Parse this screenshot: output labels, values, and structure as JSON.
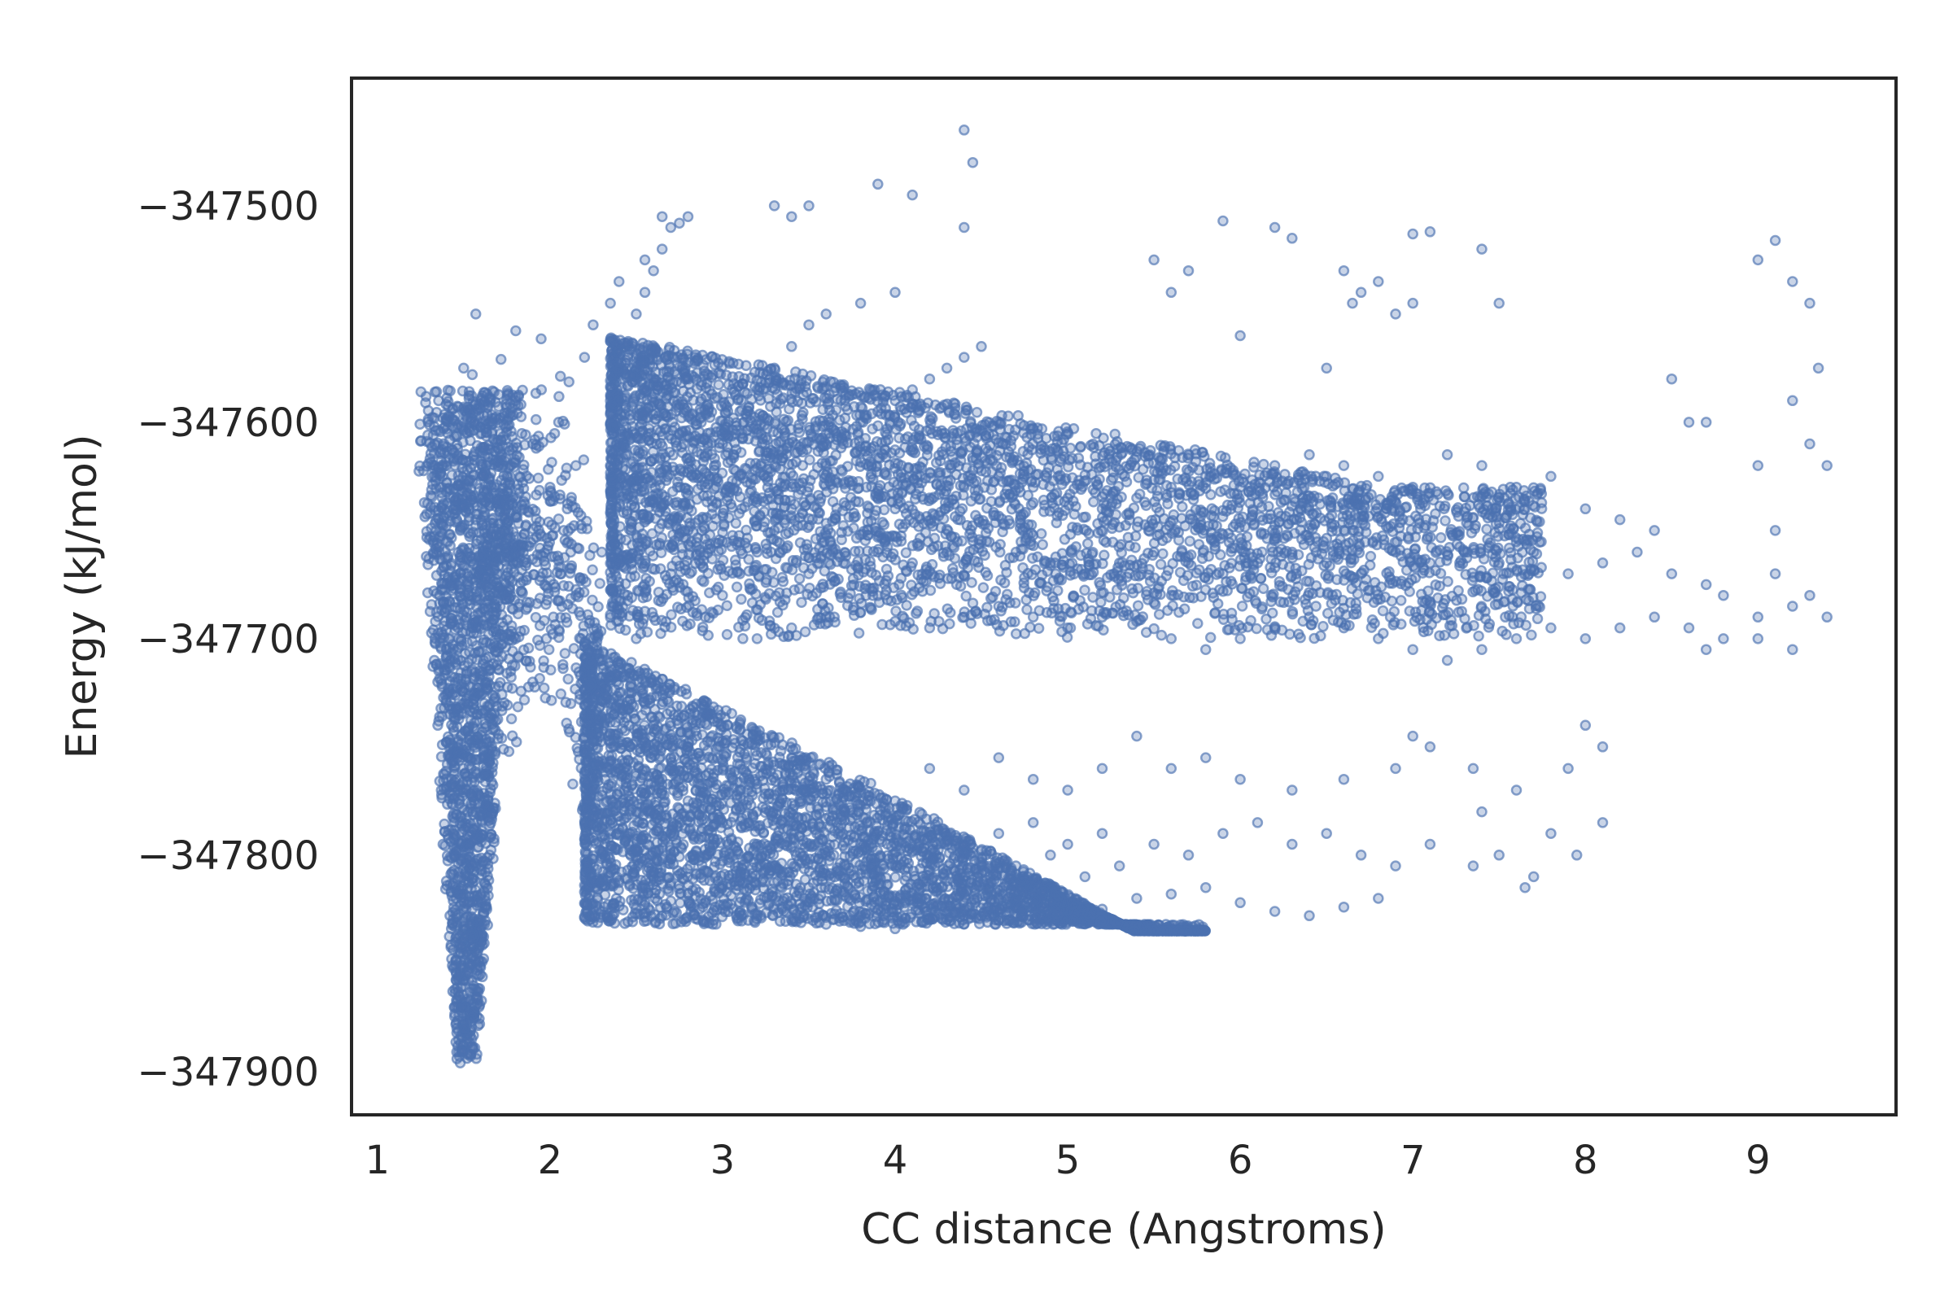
{
  "chart_data": {
    "type": "scatter",
    "title": "",
    "xlabel": "CC distance (Angstroms)",
    "ylabel": "Energy (kJ/mol)",
    "xlim": [
      0.85,
      9.8
    ],
    "ylim": [
      -347920,
      -347441
    ],
    "x_ticks": [
      1,
      2,
      3,
      4,
      5,
      6,
      7,
      8,
      9
    ],
    "x_tick_labels": [
      "1",
      "2",
      "3",
      "4",
      "5",
      "6",
      "7",
      "8",
      "9"
    ],
    "y_ticks": [
      -347500,
      -347600,
      -347700,
      -347800,
      -347900
    ],
    "y_tick_labels": [
      "−347500",
      "−347600",
      "−347700",
      "−347800",
      "−347900"
    ],
    "grid": false,
    "legend": "none",
    "marker_color": "#4c72b0",
    "marker_alpha": 0.5,
    "clusters": [
      {
        "x": [
          1.3,
          2.0
        ],
        "y": [
          -347900,
          -347580
        ],
        "note": "steep minimum well near 1.5 A"
      },
      {
        "x": [
          2.3,
          9.4
        ],
        "y": [
          -347710,
          -347505
        ],
        "note": "upper branch"
      },
      {
        "x": [
          2.2,
          8.1
        ],
        "y": [
          -347835,
          -347740
        ],
        "note": "lower branch"
      }
    ],
    "points": [
      [
        1.48,
        -347896
      ],
      [
        1.5,
        -347890
      ],
      [
        1.52,
        -347885
      ],
      [
        1.46,
        -347880
      ],
      [
        1.55,
        -347875
      ],
      [
        1.5,
        -347870
      ],
      [
        1.45,
        -347862
      ],
      [
        1.53,
        -347858
      ],
      [
        1.58,
        -347852
      ],
      [
        1.43,
        -347848
      ],
      [
        1.49,
        -347842
      ],
      [
        1.56,
        -347838
      ],
      [
        1.62,
        -347832
      ],
      [
        1.42,
        -347828
      ],
      [
        1.5,
        -347822
      ],
      [
        1.6,
        -347818
      ],
      [
        1.4,
        -347812
      ],
      [
        1.47,
        -347808
      ],
      [
        1.55,
        -347804
      ],
      [
        1.65,
        -347800
      ],
      [
        1.38,
        -347795
      ],
      [
        1.44,
        -347790
      ],
      [
        1.52,
        -347786
      ],
      [
        1.6,
        -347781
      ],
      [
        1.68,
        -347776
      ],
      [
        1.37,
        -347770
      ],
      [
        1.43,
        -347765
      ],
      [
        1.5,
        -347760
      ],
      [
        1.58,
        -347756
      ],
      [
        1.66,
        -347751
      ],
      [
        1.72,
        -347746
      ],
      [
        1.35,
        -347740
      ],
      [
        1.42,
        -347735
      ],
      [
        1.49,
        -347730
      ],
      [
        1.56,
        -347725
      ],
      [
        1.64,
        -347720
      ],
      [
        1.75,
        -347716
      ],
      [
        1.33,
        -347710
      ],
      [
        1.4,
        -347705
      ],
      [
        1.47,
        -347700
      ],
      [
        1.55,
        -347695
      ],
      [
        1.62,
        -347690
      ],
      [
        1.78,
        -347686
      ],
      [
        1.36,
        -347680
      ],
      [
        1.44,
        -347675
      ],
      [
        1.52,
        -347670
      ],
      [
        1.6,
        -347665
      ],
      [
        1.82,
        -347660
      ],
      [
        1.4,
        -347655
      ],
      [
        1.48,
        -347650
      ],
      [
        1.57,
        -347645
      ],
      [
        1.85,
        -347640
      ],
      [
        1.42,
        -347635
      ],
      [
        1.5,
        -347630
      ],
      [
        1.88,
        -347626
      ],
      [
        1.45,
        -347620
      ],
      [
        1.56,
        -347615
      ],
      [
        1.92,
        -347612
      ],
      [
        1.52,
        -347605
      ],
      [
        1.38,
        -347598
      ],
      [
        1.6,
        -347590
      ],
      [
        1.95,
        -347585
      ],
      [
        1.55,
        -347578
      ],
      [
        1.57,
        -347550
      ],
      [
        1.68,
        -347630
      ],
      [
        1.7,
        -347655
      ],
      [
        1.75,
        -347680
      ],
      [
        1.8,
        -347700
      ],
      [
        1.9,
        -347720
      ],
      [
        1.98,
        -347700
      ],
      [
        2.02,
        -347690
      ],
      [
        2.06,
        -347670
      ],
      [
        2.08,
        -347650
      ],
      [
        2.1,
        -347640
      ],
      [
        2.12,
        -347660
      ],
      [
        2.15,
        -347680
      ],
      [
        2.18,
        -347700
      ],
      [
        2.2,
        -347715
      ],
      [
        2.22,
        -347730
      ],
      [
        2.25,
        -347745
      ],
      [
        2.28,
        -347755
      ],
      [
        2.32,
        -347765
      ],
      [
        2.36,
        -347775
      ],
      [
        2.4,
        -347782
      ],
      [
        2.45,
        -347790
      ],
      [
        2.5,
        -347797
      ],
      [
        2.55,
        -347802
      ],
      [
        2.6,
        -347808
      ],
      [
        2.7,
        -347813
      ],
      [
        2.8,
        -347818
      ],
      [
        2.9,
        -347822
      ],
      [
        3.0,
        -347825
      ],
      [
        3.2,
        -347828
      ],
      [
        3.4,
        -347830
      ],
      [
        3.6,
        -347832
      ],
      [
        3.8,
        -347833
      ],
      [
        4.0,
        -347834
      ],
      [
        4.2,
        -347830
      ],
      [
        4.4,
        -347828
      ],
      [
        4.6,
        -347826
      ],
      [
        4.8,
        -347824
      ],
      [
        5.0,
        -347822
      ],
      [
        5.2,
        -347825
      ],
      [
        5.4,
        -347820
      ],
      [
        5.6,
        -347818
      ],
      [
        5.8,
        -347815
      ],
      [
        6.0,
        -347822
      ],
      [
        6.2,
        -347826
      ],
      [
        6.4,
        -347828
      ],
      [
        6.6,
        -347824
      ],
      [
        6.8,
        -347820
      ],
      [
        2.4,
        -347760
      ],
      [
        2.5,
        -347780
      ],
      [
        2.6,
        -347770
      ],
      [
        2.7,
        -347790
      ],
      [
        2.8,
        -347775
      ],
      [
        2.9,
        -347800
      ],
      [
        3.0,
        -347785
      ],
      [
        3.1,
        -347810
      ],
      [
        3.2,
        -347795
      ],
      [
        3.3,
        -347805
      ],
      [
        3.4,
        -347790
      ],
      [
        3.5,
        -347815
      ],
      [
        3.6,
        -347800
      ],
      [
        3.7,
        -347810
      ],
      [
        3.8,
        -347795
      ],
      [
        3.9,
        -347815
      ],
      [
        4.0,
        -347805
      ],
      [
        4.1,
        -347820
      ],
      [
        4.2,
        -347800
      ],
      [
        4.3,
        -347812
      ],
      [
        4.4,
        -347795
      ],
      [
        4.5,
        -347808
      ],
      [
        4.6,
        -347790
      ],
      [
        4.7,
        -347805
      ],
      [
        4.8,
        -347785
      ],
      [
        4.9,
        -347800
      ],
      [
        5.0,
        -347795
      ],
      [
        5.1,
        -347810
      ],
      [
        5.2,
        -347790
      ],
      [
        5.3,
        -347805
      ],
      [
        5.5,
        -347795
      ],
      [
        5.7,
        -347800
      ],
      [
        5.9,
        -347790
      ],
      [
        6.1,
        -347785
      ],
      [
        6.3,
        -347795
      ],
      [
        6.5,
        -347790
      ],
      [
        6.7,
        -347800
      ],
      [
        6.9,
        -347805
      ],
      [
        7.1,
        -347795
      ],
      [
        2.6,
        -347740
      ],
      [
        2.8,
        -347750
      ],
      [
        3.0,
        -347760
      ],
      [
        3.2,
        -347745
      ],
      [
        3.4,
        -347755
      ],
      [
        3.6,
        -347765
      ],
      [
        3.8,
        -347770
      ],
      [
        4.0,
        -347775
      ],
      [
        4.2,
        -347760
      ],
      [
        4.4,
        -347770
      ],
      [
        4.6,
        -347755
      ],
      [
        4.8,
        -347765
      ],
      [
        5.0,
        -347770
      ],
      [
        5.2,
        -347760
      ],
      [
        5.4,
        -347745
      ],
      [
        5.6,
        -347760
      ],
      [
        5.8,
        -347755
      ],
      [
        6.0,
        -347765
      ],
      [
        6.3,
        -347770
      ],
      [
        6.6,
        -347765
      ],
      [
        6.9,
        -347760
      ],
      [
        7.0,
        -347745
      ],
      [
        7.1,
        -347750
      ],
      [
        7.35,
        -347760
      ],
      [
        7.4,
        -347780
      ],
      [
        7.5,
        -347800
      ],
      [
        7.6,
        -347770
      ],
      [
        7.7,
        -347810
      ],
      [
        7.8,
        -347790
      ],
      [
        7.9,
        -347760
      ],
      [
        8.0,
        -347740
      ],
      [
        8.1,
        -347750
      ],
      [
        8.1,
        -347785
      ],
      [
        7.35,
        -347805
      ],
      [
        7.65,
        -347815
      ],
      [
        7.95,
        -347800
      ],
      [
        2.3,
        -347660
      ],
      [
        2.35,
        -347620
      ],
      [
        2.4,
        -347590
      ],
      [
        2.45,
        -347570
      ],
      [
        2.5,
        -347550
      ],
      [
        2.55,
        -347540
      ],
      [
        2.6,
        -347530
      ],
      [
        2.65,
        -347520
      ],
      [
        2.7,
        -347510
      ],
      [
        2.8,
        -347505
      ],
      [
        2.45,
        -347680
      ],
      [
        2.5,
        -347700
      ],
      [
        2.6,
        -347690
      ],
      [
        2.7,
        -347670
      ],
      [
        2.8,
        -347650
      ],
      [
        2.9,
        -347630
      ],
      [
        3.0,
        -347610
      ],
      [
        3.1,
        -347595
      ],
      [
        3.2,
        -347585
      ],
      [
        3.3,
        -347575
      ],
      [
        3.4,
        -347565
      ],
      [
        3.5,
        -347555
      ],
      [
        3.6,
        -347550
      ],
      [
        3.8,
        -347545
      ],
      [
        4.0,
        -347540
      ],
      [
        2.9,
        -347690
      ],
      [
        3.0,
        -347680
      ],
      [
        3.1,
        -347670
      ],
      [
        3.2,
        -347660
      ],
      [
        3.3,
        -347650
      ],
      [
        3.4,
        -347640
      ],
      [
        3.5,
        -347630
      ],
      [
        3.6,
        -347620
      ],
      [
        3.7,
        -347610
      ],
      [
        3.8,
        -347600
      ],
      [
        3.9,
        -347595
      ],
      [
        4.0,
        -347590
      ],
      [
        4.1,
        -347585
      ],
      [
        4.2,
        -347580
      ],
      [
        4.3,
        -347575
      ],
      [
        4.4,
        -347570
      ],
      [
        4.5,
        -347565
      ],
      [
        3.2,
        -347700
      ],
      [
        3.4,
        -347695
      ],
      [
        3.6,
        -347690
      ],
      [
        3.8,
        -347688
      ],
      [
        4.0,
        -347692
      ],
      [
        4.2,
        -347695
      ],
      [
        4.4,
        -347690
      ],
      [
        4.6,
        -347685
      ],
      [
        4.8,
        -347690
      ],
      [
        5.0,
        -347695
      ],
      [
        5.2,
        -347690
      ],
      [
        5.4,
        -347692
      ],
      [
        5.6,
        -347700
      ],
      [
        5.8,
        -347705
      ],
      [
        6.0,
        -347700
      ],
      [
        6.2,
        -347695
      ],
      [
        6.4,
        -347690
      ],
      [
        6.6,
        -347695
      ],
      [
        6.8,
        -347700
      ],
      [
        7.0,
        -347705
      ],
      [
        7.2,
        -347710
      ],
      [
        7.4,
        -347705
      ],
      [
        7.6,
        -347700
      ],
      [
        7.8,
        -347695
      ],
      [
        8.0,
        -347700
      ],
      [
        8.2,
        -347695
      ],
      [
        8.4,
        -347690
      ],
      [
        8.6,
        -347695
      ],
      [
        8.8,
        -347700
      ],
      [
        9.0,
        -347690
      ],
      [
        9.2,
        -347685
      ],
      [
        9.4,
        -347690
      ],
      [
        3.5,
        -347670
      ],
      [
        3.7,
        -347665
      ],
      [
        3.9,
        -347660
      ],
      [
        4.1,
        -347665
      ],
      [
        4.3,
        -347660
      ],
      [
        4.5,
        -347655
      ],
      [
        4.7,
        -347660
      ],
      [
        4.9,
        -347665
      ],
      [
        5.1,
        -347670
      ],
      [
        5.3,
        -347665
      ],
      [
        5.5,
        -347660
      ],
      [
        5.7,
        -347665
      ],
      [
        5.9,
        -347670
      ],
      [
        6.1,
        -347665
      ],
      [
        6.3,
        -347660
      ],
      [
        6.5,
        -347665
      ],
      [
        6.7,
        -347670
      ],
      [
        6.9,
        -347660
      ],
      [
        7.1,
        -347665
      ],
      [
        7.3,
        -347660
      ],
      [
        7.5,
        -347665
      ],
      [
        7.7,
        -347660
      ],
      [
        7.9,
        -347670
      ],
      [
        8.1,
        -347665
      ],
      [
        8.3,
        -347660
      ],
      [
        8.5,
        -347670
      ],
      [
        8.7,
        -347675
      ],
      [
        9.1,
        -347670
      ],
      [
        9.3,
        -347680
      ],
      [
        4.0,
        -347640
      ],
      [
        4.2,
        -347635
      ],
      [
        4.4,
        -347630
      ],
      [
        4.6,
        -347625
      ],
      [
        4.8,
        -347630
      ],
      [
        5.0,
        -347635
      ],
      [
        5.2,
        -347640
      ],
      [
        5.4,
        -347635
      ],
      [
        5.6,
        -347630
      ],
      [
        5.8,
        -347625
      ],
      [
        6.0,
        -347630
      ],
      [
        6.2,
        -347620
      ],
      [
        6.4,
        -347615
      ],
      [
        6.6,
        -347620
      ],
      [
        6.8,
        -347625
      ],
      [
        7.0,
        -347630
      ],
      [
        7.2,
        -347615
      ],
      [
        7.4,
        -347620
      ],
      [
        7.6,
        -347630
      ],
      [
        7.8,
        -347625
      ],
      [
        8.0,
        -347640
      ],
      [
        8.2,
        -347645
      ],
      [
        8.4,
        -347650
      ],
      [
        8.6,
        -347600
      ],
      [
        9.0,
        -347620
      ],
      [
        9.3,
        -347610
      ],
      [
        4.1,
        -347495
      ],
      [
        4.4,
        -347465
      ],
      [
        4.45,
        -347480
      ],
      [
        4.4,
        -347510
      ],
      [
        3.9,
        -347490
      ],
      [
        3.3,
        -347500
      ],
      [
        3.4,
        -347505
      ],
      [
        3.5,
        -347500
      ],
      [
        5.9,
        -347507
      ],
      [
        6.2,
        -347510
      ],
      [
        6.3,
        -347515
      ],
      [
        7.0,
        -347513
      ],
      [
        7.1,
        -347512
      ],
      [
        7.4,
        -347520
      ],
      [
        9.1,
        -347516
      ],
      [
        9.0,
        -347525
      ],
      [
        9.2,
        -347535
      ],
      [
        9.3,
        -347545
      ],
      [
        6.6,
        -347530
      ],
      [
        6.7,
        -347540
      ],
      [
        6.65,
        -347545
      ],
      [
        6.8,
        -347535
      ],
      [
        6.9,
        -347550
      ],
      [
        7.0,
        -347545
      ],
      [
        5.5,
        -347525
      ],
      [
        5.6,
        -347540
      ],
      [
        5.7,
        -347530
      ],
      [
        6.0,
        -347560
      ],
      [
        6.5,
        -347575
      ],
      [
        7.5,
        -347545
      ],
      [
        8.5,
        -347580
      ],
      [
        8.7,
        -347600
      ],
      [
        9.2,
        -347590
      ],
      [
        9.35,
        -347575
      ],
      [
        9.4,
        -347620
      ],
      [
        9.1,
        -347650
      ],
      [
        8.8,
        -347680
      ],
      [
        9.0,
        -347700
      ],
      [
        9.2,
        -347705
      ],
      [
        8.7,
        -347705
      ],
      [
        1.5,
        -347575
      ],
      [
        1.45,
        -347640
      ],
      [
        1.42,
        -347700
      ],
      [
        1.65,
        -347600
      ],
      [
        1.7,
        -347620
      ],
      [
        1.8,
        -347590
      ],
      [
        1.9,
        -347610
      ],
      [
        2.0,
        -347630
      ],
      [
        2.05,
        -347600
      ],
      [
        2.15,
        -347620
      ],
      [
        2.2,
        -347570
      ],
      [
        2.25,
        -347555
      ],
      [
        2.35,
        -347545
      ],
      [
        2.4,
        -347535
      ],
      [
        2.55,
        -347525
      ],
      [
        2.65,
        -347505
      ],
      [
        2.75,
        -347508
      ]
    ]
  }
}
